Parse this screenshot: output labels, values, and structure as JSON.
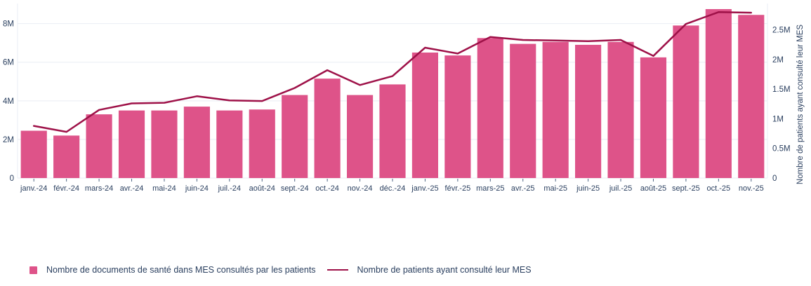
{
  "chart_data": {
    "type": "combo",
    "title": "",
    "unit": "millions",
    "categories": [
      "janv.-24",
      "févr.-24",
      "mars-24",
      "avr.-24",
      "mai-24",
      "juin-24",
      "juil.-24",
      "août-24",
      "sept.-24",
      "oct.-24",
      "nov.-24",
      "déc.-24",
      "janv.-25",
      "févr.-25",
      "mars-25",
      "avr.-25",
      "mai-25",
      "juin-25",
      "juil.-25",
      "août-25",
      "sept.-25",
      "oct.-25",
      "nov.-25"
    ],
    "series": [
      {
        "name": "Nombre de documents de santé dans MES consultés par les patients",
        "type": "bar",
        "axis": "left",
        "color": "#de5389",
        "values": [
          2.45,
          2.2,
          3.3,
          3.5,
          3.5,
          3.7,
          3.5,
          3.55,
          4.3,
          5.15,
          4.3,
          4.85,
          6.5,
          6.35,
          7.25,
          6.95,
          7.05,
          6.9,
          7.05,
          6.25,
          7.9,
          8.75,
          8.45
        ]
      },
      {
        "name": "Nombre de patients ayant consulté leur MES",
        "type": "line",
        "axis": "right",
        "color": "#9e1148",
        "values": [
          0.88,
          0.78,
          1.15,
          1.26,
          1.27,
          1.38,
          1.31,
          1.3,
          1.52,
          1.82,
          1.57,
          1.72,
          2.2,
          2.1,
          2.38,
          2.33,
          2.32,
          2.31,
          2.33,
          2.06,
          2.6,
          2.8,
          2.79
        ]
      }
    ],
    "left_axis": {
      "ticks": [
        "0",
        "2M",
        "4M",
        "6M",
        "8M"
      ],
      "tick_values": [
        0,
        2,
        4,
        6,
        8
      ],
      "max": 9.04,
      "title": ""
    },
    "right_axis": {
      "ticks": [
        "0",
        "0.5M",
        "1M",
        "1.5M",
        "2M",
        "2.5M"
      ],
      "tick_values": [
        0,
        0.5,
        1,
        1.5,
        2,
        2.5
      ],
      "max": 2.945,
      "title": "Nombre de patients ayant consulté leur MES"
    },
    "grid": true,
    "legend_position": "bottom-left"
  },
  "colors": {
    "bar": "#de5389",
    "line": "#9e1148",
    "axis_text": "#2a3f5f",
    "gridline": "#e9edf4",
    "background": "#ffffff"
  }
}
